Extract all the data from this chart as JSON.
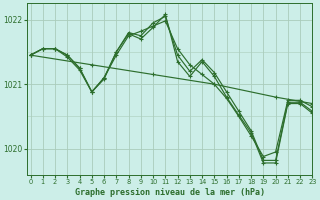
{
  "title": "Graphe pression niveau de la mer (hPa)",
  "background_color": "#cceee8",
  "grid_color": "#aaccbb",
  "line_color": "#2d6e2d",
  "ylim": [
    1019.6,
    1022.25
  ],
  "xlim": [
    -0.3,
    23
  ],
  "yticks": [
    1020,
    1021,
    1022
  ],
  "xticks": [
    0,
    1,
    2,
    3,
    4,
    5,
    6,
    7,
    8,
    9,
    10,
    11,
    12,
    13,
    14,
    15,
    16,
    17,
    18,
    19,
    20,
    21,
    22,
    23
  ],
  "lines": [
    {
      "x": [
        0,
        5,
        10,
        15,
        20,
        23
      ],
      "y": [
        1021.45,
        1021.3,
        1021.15,
        1021.0,
        1020.8,
        1020.7
      ]
    },
    {
      "x": [
        0,
        1,
        2,
        3,
        4,
        5,
        6,
        7,
        8,
        9,
        10,
        11,
        12,
        13,
        14,
        15,
        16,
        17,
        18,
        19,
        20,
        21,
        22,
        23
      ],
      "y": [
        1021.45,
        1021.55,
        1021.55,
        1021.45,
        1021.25,
        1020.88,
        1021.1,
        1021.45,
        1021.75,
        1021.82,
        1021.9,
        1021.98,
        1021.55,
        1021.3,
        1021.15,
        1021.0,
        1020.78,
        1020.5,
        1020.2,
        1019.88,
        1019.95,
        1020.75,
        1020.75,
        1020.65
      ]
    },
    {
      "x": [
        0,
        1,
        2,
        3,
        4,
        5,
        6,
        7,
        8,
        9,
        10,
        11,
        12,
        13,
        14,
        15,
        16,
        17,
        18,
        19,
        20,
        21,
        22,
        23
      ],
      "y": [
        1021.45,
        1021.55,
        1021.55,
        1021.45,
        1021.25,
        1020.88,
        1021.1,
        1021.5,
        1021.8,
        1021.75,
        1021.95,
        1022.05,
        1021.45,
        1021.2,
        1021.38,
        1021.18,
        1020.88,
        1020.58,
        1020.28,
        1019.82,
        1019.82,
        1020.72,
        1020.72,
        1020.58
      ]
    },
    {
      "x": [
        0,
        1,
        2,
        3,
        4,
        5,
        6,
        7,
        8,
        9,
        10,
        11,
        12,
        13,
        14,
        15,
        16,
        17,
        18,
        19,
        20,
        21,
        22,
        23
      ],
      "y": [
        1021.45,
        1021.55,
        1021.55,
        1021.42,
        1021.22,
        1020.88,
        1021.08,
        1021.5,
        1021.78,
        1021.7,
        1021.88,
        1022.08,
        1021.35,
        1021.12,
        1021.35,
        1021.12,
        1020.8,
        1020.52,
        1020.25,
        1019.78,
        1019.78,
        1020.7,
        1020.7,
        1020.55
      ]
    }
  ]
}
